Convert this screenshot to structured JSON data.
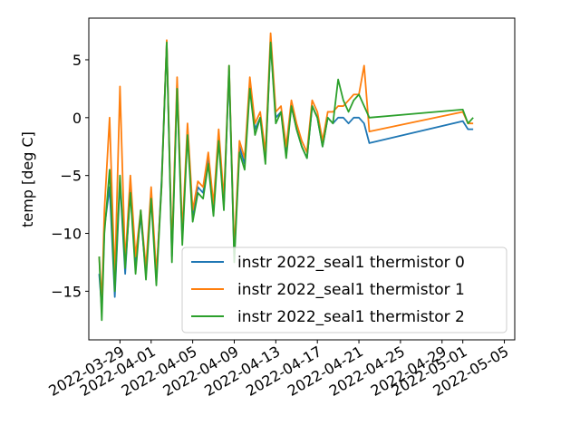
{
  "chart_data": {
    "type": "line",
    "title": "",
    "xlabel": "",
    "ylabel": "temp [deg C]",
    "x_ticks": [
      "2022-03-29",
      "2022-04-01",
      "2022-04-05",
      "2022-04-09",
      "2022-04-13",
      "2022-04-17",
      "2022-04-21",
      "2022-04-25",
      "2022-04-29",
      "2022-05-01",
      "2022-05-05"
    ],
    "y_ticks": [
      -15,
      -10,
      -5,
      0,
      5
    ],
    "xlim": [
      "2022-03-26",
      "2022-05-06"
    ],
    "ylim": [
      -19.2,
      8.6
    ],
    "grid": false,
    "legend_position": "lower-right",
    "colors": {
      "thermistor_0": "#1f77b4",
      "thermistor_1": "#ff7f0e",
      "thermistor_2": "#2ca02c"
    },
    "series": [
      {
        "name": "instr 2022_seal1 thermistor 0",
        "color": "#1f77b4",
        "x": [
          "2022-03-27",
          "2022-03-27 06:00",
          "2022-03-27 12:00",
          "2022-03-28",
          "2022-03-28 12:00",
          "2022-03-29",
          "2022-03-29 12:00",
          "2022-03-30",
          "2022-03-30 12:00",
          "2022-03-31",
          "2022-03-31 12:00",
          "2022-04-01",
          "2022-04-01 12:00",
          "2022-04-02",
          "2022-04-02 12:00",
          "2022-04-03",
          "2022-04-03 12:00",
          "2022-04-04",
          "2022-04-04 12:00",
          "2022-04-05",
          "2022-04-05 12:00",
          "2022-04-06",
          "2022-04-06 12:00",
          "2022-04-07",
          "2022-04-07 12:00",
          "2022-04-08",
          "2022-04-08 12:00",
          "2022-04-09",
          "2022-04-09 12:00",
          "2022-04-10",
          "2022-04-10 12:00",
          "2022-04-11",
          "2022-04-11 12:00",
          "2022-04-12",
          "2022-04-12 12:00",
          "2022-04-13",
          "2022-04-13 12:00",
          "2022-04-14",
          "2022-04-14 12:00",
          "2022-04-15",
          "2022-04-15 12:00",
          "2022-04-16",
          "2022-04-16 12:00",
          "2022-04-17",
          "2022-04-17 12:00",
          "2022-04-18",
          "2022-04-18 12:00",
          "2022-04-19",
          "2022-04-19 12:00",
          "2022-04-20",
          "2022-04-20 12:00",
          "2022-04-21",
          "2022-04-21 12:00",
          "2022-04-22",
          "2022-05-01",
          "2022-05-01 12:00",
          "2022-05-02"
        ],
        "y": [
          -13.5,
          -16.5,
          -9.5,
          -6.0,
          -15.5,
          -5.5,
          -13.5,
          -6.0,
          -12.5,
          -8.5,
          -13.5,
          -6.5,
          -14.0,
          -5.5,
          6.5,
          -12.0,
          3.0,
          -10.5,
          -1.0,
          -8.5,
          -6.0,
          -6.5,
          -3.5,
          -8.0,
          -1.5,
          -7.5,
          4.0,
          -12.0,
          -2.5,
          -4.0,
          3.0,
          -1.0,
          0.0,
          -3.5,
          6.5,
          0.0,
          0.5,
          -3.0,
          1.0,
          -1.0,
          -2.5,
          -3.5,
          1.0,
          0.0,
          -2.5,
          0.0,
          -0.5,
          0.0,
          0.0,
          -0.5,
          0.0,
          0.0,
          -0.5,
          -2.2,
          -0.3,
          -1.0,
          -1.0
        ]
      },
      {
        "name": "instr 2022_seal1 thermistor 1",
        "color": "#ff7f0e",
        "x": [
          "2022-03-27",
          "2022-03-27 06:00",
          "2022-03-27 12:00",
          "2022-03-28",
          "2022-03-28 12:00",
          "2022-03-29",
          "2022-03-29 12:00",
          "2022-03-30",
          "2022-03-30 12:00",
          "2022-03-31",
          "2022-03-31 12:00",
          "2022-04-01",
          "2022-04-01 12:00",
          "2022-04-02",
          "2022-04-02 12:00",
          "2022-04-03",
          "2022-04-03 12:00",
          "2022-04-04",
          "2022-04-04 12:00",
          "2022-04-05",
          "2022-04-05 12:00",
          "2022-04-06",
          "2022-04-06 12:00",
          "2022-04-07",
          "2022-04-07 12:00",
          "2022-04-08",
          "2022-04-08 12:00",
          "2022-04-09",
          "2022-04-09 12:00",
          "2022-04-10",
          "2022-04-10 12:00",
          "2022-04-11",
          "2022-04-11 12:00",
          "2022-04-12",
          "2022-04-12 12:00",
          "2022-04-13",
          "2022-04-13 12:00",
          "2022-04-14",
          "2022-04-14 12:00",
          "2022-04-15",
          "2022-04-15 12:00",
          "2022-04-16",
          "2022-04-16 12:00",
          "2022-04-17",
          "2022-04-17 12:00",
          "2022-04-18",
          "2022-04-18 12:00",
          "2022-04-19",
          "2022-04-19 12:00",
          "2022-04-20",
          "2022-04-20 12:00",
          "2022-04-21",
          "2022-04-21 12:00",
          "2022-04-22",
          "2022-05-01",
          "2022-05-01 12:00",
          "2022-05-02"
        ],
        "y": [
          -12.0,
          -16.0,
          -8.0,
          0.0,
          -14.0,
          2.7,
          -12.5,
          -5.0,
          -12.0,
          -8.0,
          -13.0,
          -6.0,
          -13.5,
          -6.0,
          6.7,
          -11.5,
          3.5,
          -10.0,
          -0.5,
          -8.0,
          -5.5,
          -6.0,
          -3.0,
          -7.5,
          -1.0,
          -7.0,
          4.5,
          -11.5,
          -2.0,
          -3.5,
          3.5,
          -0.5,
          0.5,
          -3.0,
          7.3,
          0.5,
          1.0,
          -2.5,
          1.5,
          -0.5,
          -2.0,
          -3.0,
          1.5,
          0.5,
          -2.0,
          0.5,
          0.5,
          1.0,
          1.0,
          1.5,
          2.0,
          2.0,
          4.5,
          -1.2,
          0.5,
          -0.5,
          -0.5
        ]
      },
      {
        "name": "instr 2022_seal1 thermistor 2",
        "color": "#2ca02c",
        "x": [
          "2022-03-27",
          "2022-03-27 06:00",
          "2022-03-27 12:00",
          "2022-03-28",
          "2022-03-28 12:00",
          "2022-03-29",
          "2022-03-29 12:00",
          "2022-03-30",
          "2022-03-30 12:00",
          "2022-03-31",
          "2022-03-31 12:00",
          "2022-04-01",
          "2022-04-01 12:00",
          "2022-04-02",
          "2022-04-02 12:00",
          "2022-04-03",
          "2022-04-03 12:00",
          "2022-04-04",
          "2022-04-04 12:00",
          "2022-04-05",
          "2022-04-05 12:00",
          "2022-04-06",
          "2022-04-06 12:00",
          "2022-04-07",
          "2022-04-07 12:00",
          "2022-04-08",
          "2022-04-08 12:00",
          "2022-04-09",
          "2022-04-09 12:00",
          "2022-04-10",
          "2022-04-10 12:00",
          "2022-04-11",
          "2022-04-11 12:00",
          "2022-04-12",
          "2022-04-12 12:00",
          "2022-04-13",
          "2022-04-13 12:00",
          "2022-04-14",
          "2022-04-14 12:00",
          "2022-04-15",
          "2022-04-15 12:00",
          "2022-04-16",
          "2022-04-16 12:00",
          "2022-04-17",
          "2022-04-17 12:00",
          "2022-04-18",
          "2022-04-18 12:00",
          "2022-04-19",
          "2022-04-19 12:00",
          "2022-04-20",
          "2022-04-20 12:00",
          "2022-04-21",
          "2022-04-21 12:00",
          "2022-04-22",
          "2022-05-01",
          "2022-05-01 12:00",
          "2022-05-02"
        ],
        "y": [
          -12.0,
          -17.5,
          -10.0,
          -4.5,
          -15.0,
          -5.0,
          -13.0,
          -6.5,
          -13.5,
          -8.0,
          -14.0,
          -7.0,
          -14.5,
          -6.0,
          6.5,
          -12.5,
          2.5,
          -11.0,
          -1.5,
          -9.0,
          -6.5,
          -7.0,
          -4.0,
          -8.5,
          -2.0,
          -8.0,
          4.5,
          -12.5,
          -3.0,
          -4.5,
          2.5,
          -1.5,
          0.0,
          -4.0,
          6.5,
          -0.5,
          0.5,
          -3.5,
          1.0,
          -1.0,
          -2.5,
          -3.5,
          1.0,
          0.0,
          -2.5,
          0.0,
          -0.5,
          3.3,
          1.5,
          0.5,
          1.5,
          2.0,
          1.0,
          0.0,
          0.7,
          -0.5,
          0.0
        ]
      }
    ]
  }
}
